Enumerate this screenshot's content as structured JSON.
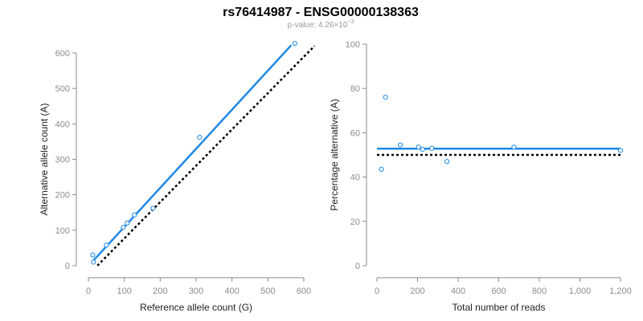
{
  "title": "rs76414987 - ENSG00000138363",
  "subtitle": {
    "prefix": "p-value: 4.26×10",
    "exponent": "−3"
  },
  "colors": {
    "fit_line": "#1e88e5",
    "points": "#1e88e5",
    "reference_line": "#000000",
    "axis": "#888888",
    "tick_text": "#8c8c8c"
  },
  "chart_data": [
    {
      "type": "scatter",
      "xlabel": "Reference allele count (G)",
      "ylabel": "Alternative allele count (A)",
      "xlim": [
        0,
        600
      ],
      "ylim": [
        0,
        600
      ],
      "xticks": [
        0,
        100,
        200,
        300,
        400,
        500,
        600
      ],
      "yticks": [
        0,
        100,
        200,
        300,
        400,
        500,
        600
      ],
      "xtick_labels": [
        "0",
        "100",
        "200",
        "300",
        "400",
        "500",
        "600"
      ],
      "ytick_labels": [
        "0",
        "100",
        "200",
        "300",
        "400",
        "500",
        "600"
      ],
      "points": [
        {
          "x": 12,
          "y": 30
        },
        {
          "x": 14,
          "y": 10
        },
        {
          "x": 50,
          "y": 58
        },
        {
          "x": 97,
          "y": 108
        },
        {
          "x": 108,
          "y": 120
        },
        {
          "x": 128,
          "y": 143
        },
        {
          "x": 180,
          "y": 162
        },
        {
          "x": 310,
          "y": 362
        },
        {
          "x": 575,
          "y": 627
        }
      ],
      "fit_line": {
        "x": [
          10,
          565
        ],
        "y": [
          10,
          622
        ]
      },
      "reference_line": {
        "x": [
          25,
          630
        ],
        "y": [
          0,
          620
        ]
      },
      "grid": false
    },
    {
      "type": "scatter",
      "xlabel": "Total number of reads",
      "ylabel": "Percentage alternative (A)",
      "xlim": [
        0,
        1200
      ],
      "ylim": [
        0,
        100
      ],
      "xticks": [
        0,
        200,
        400,
        600,
        800,
        1000,
        1200
      ],
      "yticks": [
        0,
        20,
        40,
        60,
        80,
        100
      ],
      "xtick_labels": [
        "0",
        "200",
        "400",
        "600",
        "800",
        "1,000",
        "1,200"
      ],
      "ytick_labels": [
        "0",
        "20",
        "40",
        "60",
        "80",
        "100"
      ],
      "points": [
        {
          "x": 22,
          "y": 43.5
        },
        {
          "x": 42,
          "y": 76
        },
        {
          "x": 115,
          "y": 54.5
        },
        {
          "x": 205,
          "y": 53.5
        },
        {
          "x": 225,
          "y": 52.5
        },
        {
          "x": 270,
          "y": 53.0
        },
        {
          "x": 345,
          "y": 47.0
        },
        {
          "x": 675,
          "y": 53.5
        },
        {
          "x": 1200,
          "y": 52.0
        }
      ],
      "fit_line": {
        "x": [
          0,
          1200
        ],
        "y": [
          52.8,
          52.8
        ]
      },
      "reference_line": {
        "x": [
          0,
          1200
        ],
        "y": [
          50,
          50
        ]
      },
      "grid": false
    }
  ]
}
